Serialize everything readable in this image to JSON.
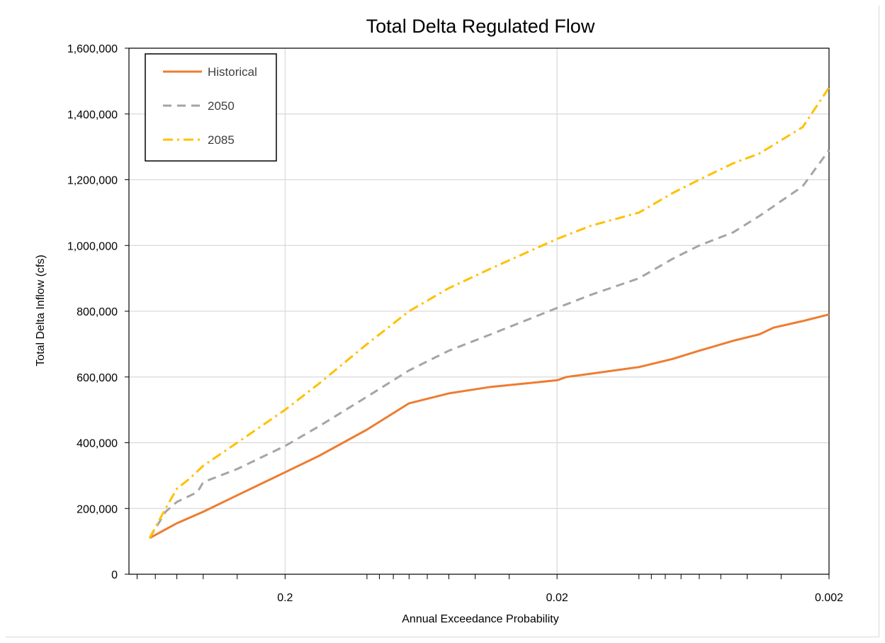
{
  "chart_data": {
    "type": "line",
    "title": "Total Delta Regulated Flow",
    "xlabel": "Annual Exceedance Probability",
    "ylabel": "Total Delta Inflow (cfs)",
    "x_scale": "log-reversed",
    "xlim": [
      0.75,
      0.002
    ],
    "ylim": [
      0,
      1600000
    ],
    "yticks": [
      0,
      200000,
      400000,
      600000,
      800000,
      1000000,
      1200000,
      1400000,
      1600000
    ],
    "ytick_labels": [
      "0",
      "200,000",
      "400,000",
      "600,000",
      "800,000",
      "1,000,000",
      "1,200,000",
      "1,400,000",
      "1,600,000"
    ],
    "xticks": [
      0.2,
      0.02,
      0.002
    ],
    "xtick_labels": [
      "0.2",
      "0.02",
      "0.002"
    ],
    "grid": true,
    "legend_position": "top-left",
    "series": [
      {
        "name": "Historical",
        "color": "#ED7D31",
        "dash": "solid",
        "x": [
          0.63,
          0.5,
          0.4,
          0.3,
          0.2,
          0.15,
          0.1,
          0.07,
          0.05,
          0.035,
          0.02,
          0.0185,
          0.015,
          0.01,
          0.0075,
          0.006,
          0.0045,
          0.0036,
          0.0032,
          0.0025,
          0.002
        ],
        "y": [
          110000,
          155000,
          190000,
          240000,
          310000,
          360000,
          440000,
          520000,
          550000,
          570000,
          590000,
          600000,
          610000,
          630000,
          655000,
          680000,
          710000,
          730000,
          750000,
          770000,
          790000
        ]
      },
      {
        "name": "2050",
        "color": "#A5A5A5",
        "dash": "dashed",
        "x": [
          0.63,
          0.55,
          0.5,
          0.42,
          0.4,
          0.3,
          0.2,
          0.15,
          0.1,
          0.07,
          0.05,
          0.035,
          0.02,
          0.015,
          0.01,
          0.0075,
          0.006,
          0.0045,
          0.0036,
          0.0025,
          0.002
        ],
        "y": [
          110000,
          190000,
          220000,
          250000,
          280000,
          320000,
          390000,
          450000,
          540000,
          620000,
          680000,
          730000,
          810000,
          850000,
          900000,
          960000,
          1000000,
          1040000,
          1090000,
          1180000,
          1290000
        ]
      },
      {
        "name": "2085",
        "color": "#FFC000",
        "dash": "dashdot",
        "x": [
          0.63,
          0.55,
          0.5,
          0.45,
          0.4,
          0.3,
          0.2,
          0.15,
          0.1,
          0.07,
          0.05,
          0.035,
          0.02,
          0.015,
          0.01,
          0.0075,
          0.006,
          0.0045,
          0.0036,
          0.0025,
          0.002
        ],
        "y": [
          110000,
          200000,
          260000,
          290000,
          330000,
          400000,
          500000,
          580000,
          700000,
          800000,
          870000,
          930000,
          1020000,
          1060000,
          1100000,
          1160000,
          1200000,
          1250000,
          1280000,
          1360000,
          1480000
        ]
      }
    ]
  }
}
